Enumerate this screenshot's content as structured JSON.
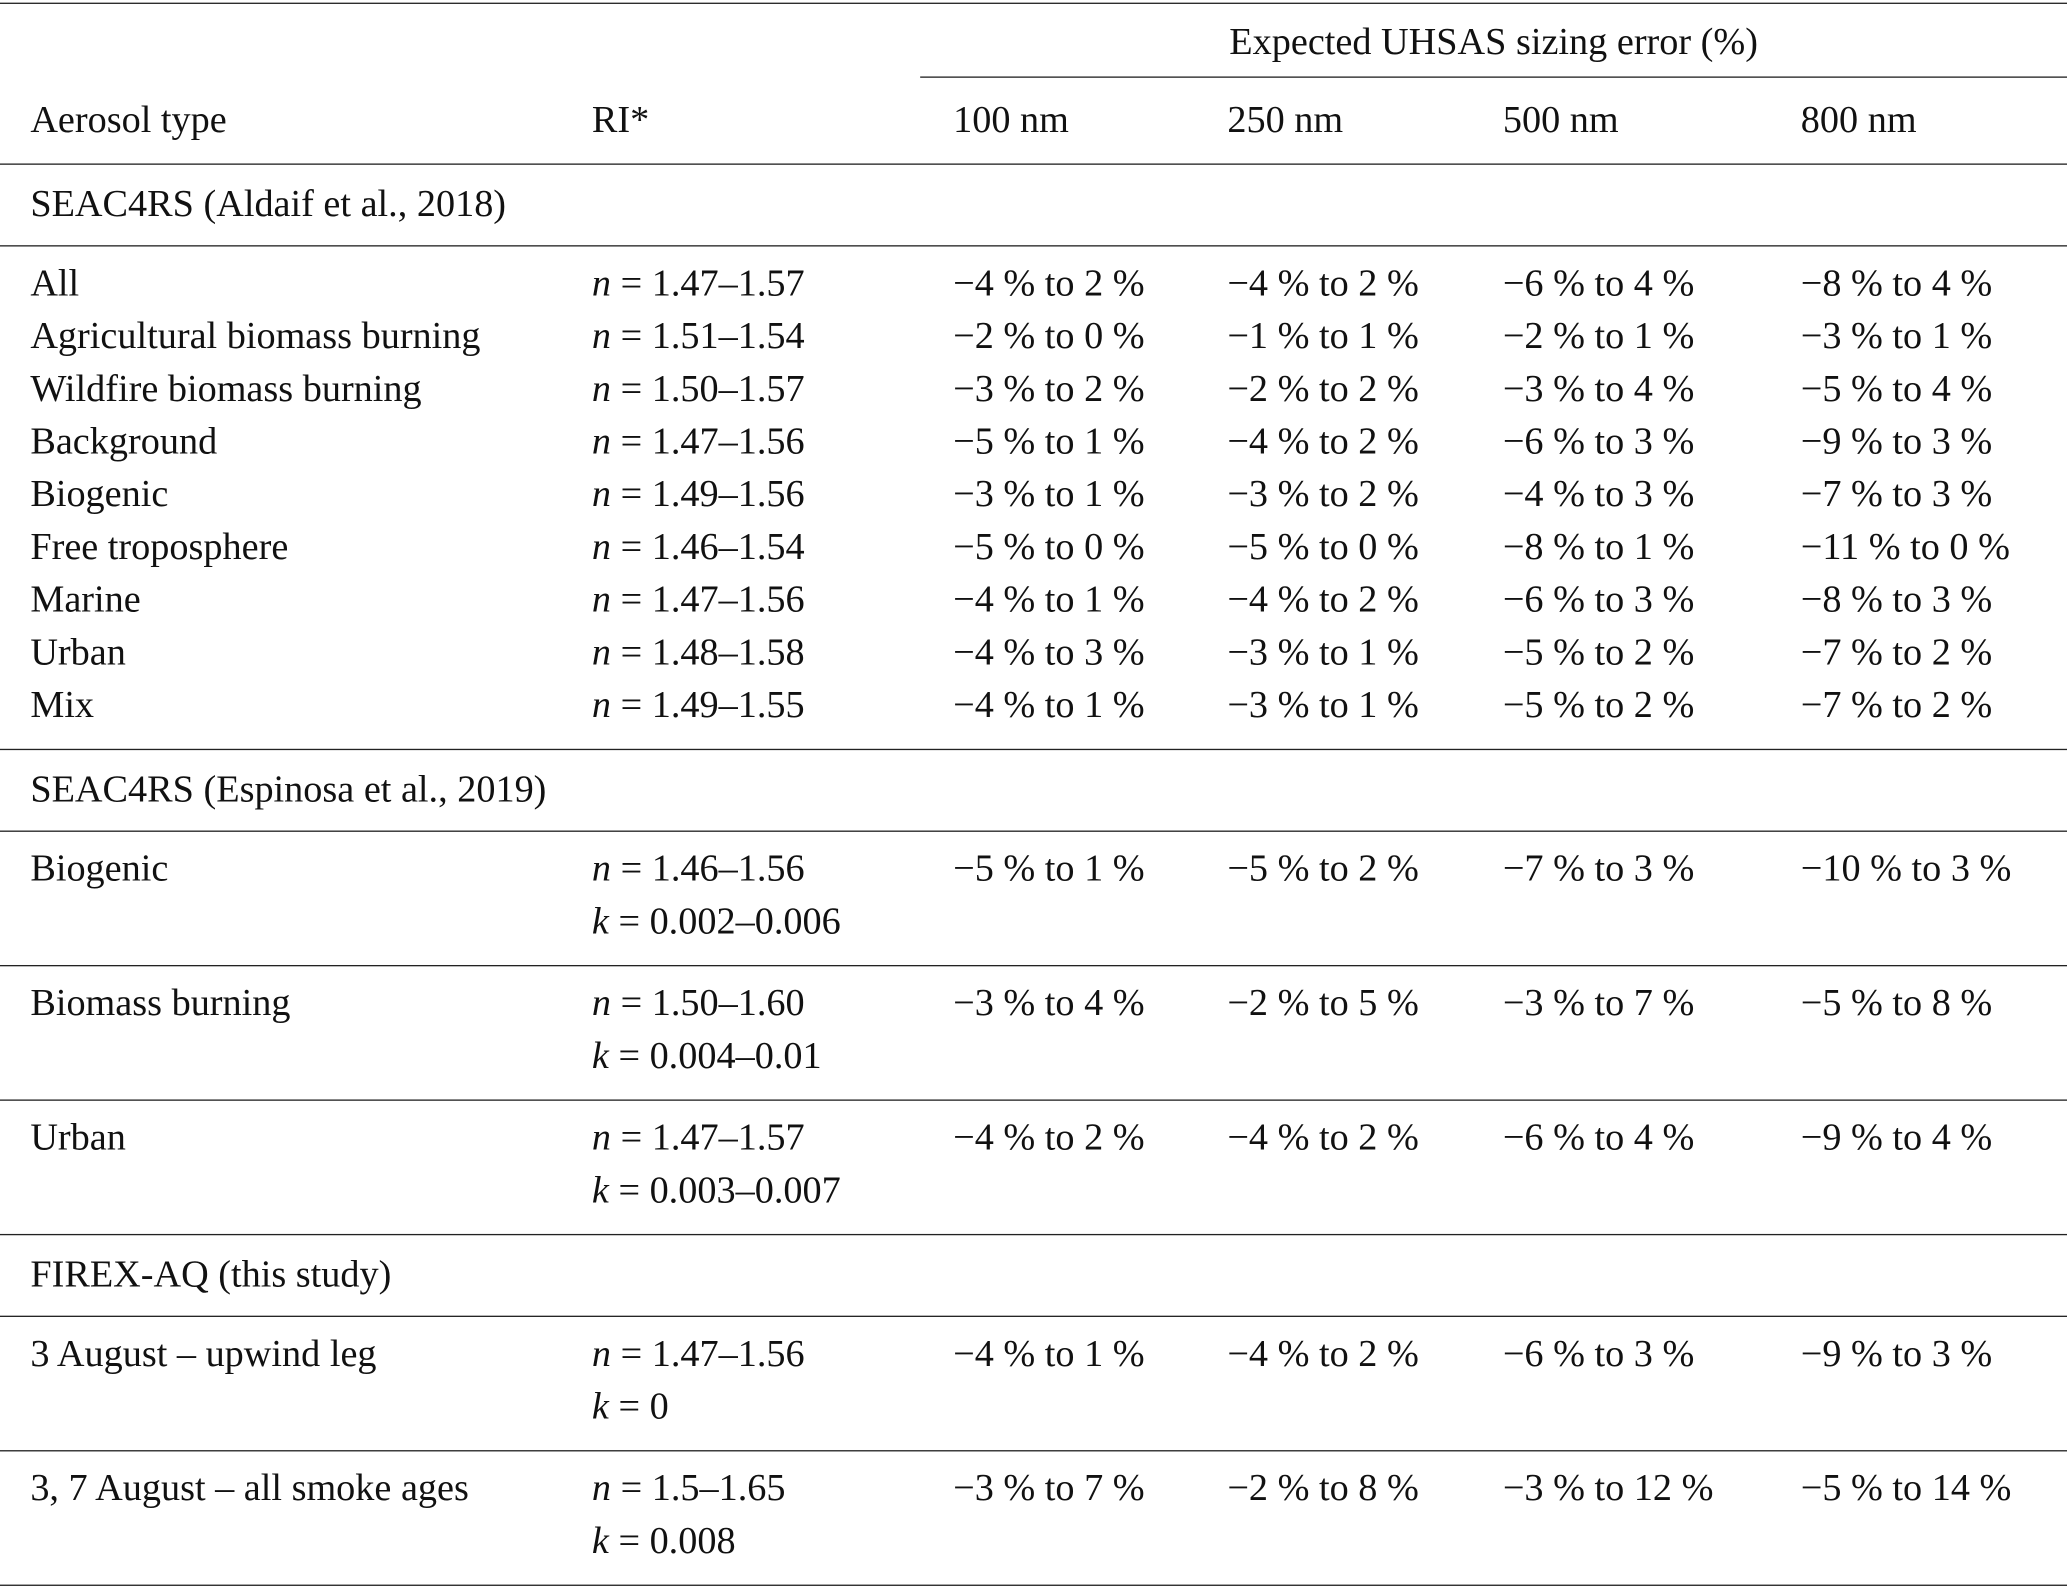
{
  "table": {
    "group_header": "Expected UHSAS sizing error (%)",
    "columns": [
      "Aerosol type",
      "RI*",
      "100 nm",
      "250 nm",
      "500 nm",
      "800 nm"
    ],
    "sections": [
      {
        "title": "SEAC4RS (Aldaif et al., 2018)",
        "rows": [
          {
            "type": "All",
            "ri": [
              "n = 1.47–1.57"
            ],
            "errors": [
              "−4 % to 2 %",
              "−4 % to 2 %",
              "−6 % to 4 %",
              "−8 % to 4 %"
            ]
          },
          {
            "type": "Agricultural biomass burning",
            "ri": [
              "n = 1.51–1.54"
            ],
            "errors": [
              "−2 % to 0 %",
              "−1 % to 1 %",
              "−2 % to 1 %",
              "−3 % to 1 %"
            ]
          },
          {
            "type": "Wildfire biomass burning",
            "ri": [
              "n = 1.50–1.57"
            ],
            "errors": [
              "−3 % to 2 %",
              "−2 % to 2 %",
              "−3 % to 4 %",
              "−5 % to 4 %"
            ]
          },
          {
            "type": "Background",
            "ri": [
              "n = 1.47–1.56"
            ],
            "errors": [
              "−5 % to 1 %",
              "−4 % to 2 %",
              "−6 % to 3 %",
              "−9 % to 3 %"
            ]
          },
          {
            "type": "Biogenic",
            "ri": [
              "n = 1.49–1.56"
            ],
            "errors": [
              "−3 % to 1 %",
              "−3 % to 2 %",
              "−4 % to 3 %",
              "−7 % to 3 %"
            ]
          },
          {
            "type": "Free troposphere",
            "ri": [
              "n = 1.46–1.54"
            ],
            "errors": [
              "−5 % to 0 %",
              "−5 % to 0 %",
              "−8 % to 1 %",
              "−11 % to 0 %"
            ]
          },
          {
            "type": "Marine",
            "ri": [
              "n = 1.47–1.56"
            ],
            "errors": [
              "−4 % to 1 %",
              "−4 % to 2 %",
              "−6 % to 3 %",
              "−8 % to 3 %"
            ]
          },
          {
            "type": "Urban",
            "ri": [
              "n = 1.48–1.58"
            ],
            "errors": [
              "−4 % to 3 %",
              "−3 % to 1 %",
              "−5 % to 2 %",
              "−7 % to 2 %"
            ]
          },
          {
            "type": "Mix",
            "ri": [
              "n = 1.49–1.55"
            ],
            "errors": [
              "−4 % to 1 %",
              "−3 % to 1 %",
              "−5 % to 2 %",
              "−7 % to 2 %"
            ]
          }
        ]
      },
      {
        "title": "SEAC4RS (Espinosa et al., 2019)",
        "rows": [
          {
            "type": "Biogenic",
            "ri": [
              "n = 1.46–1.56",
              "k = 0.002–0.006"
            ],
            "errors": [
              "−5 % to 1 %",
              "−5 % to 2 %",
              "−7 % to 3 %",
              "−10 % to 3 %"
            ]
          },
          {
            "type": "Biomass burning",
            "ri": [
              "n = 1.50–1.60",
              "k = 0.004–0.01"
            ],
            "errors": [
              "−3 % to 4 %",
              "−2 % to 5 %",
              "−3 % to 7 %",
              "−5 % to 8 %"
            ]
          },
          {
            "type": "Urban",
            "ri": [
              "n = 1.47–1.57",
              "k = 0.003–0.007"
            ],
            "errors": [
              "−4 % to 2 %",
              "−4 % to 2 %",
              "−6 % to 4 %",
              "−9 % to 4 %"
            ]
          }
        ]
      },
      {
        "title": "FIREX-AQ (this study)",
        "rows": [
          {
            "type": "3 August – upwind leg",
            "ri": [
              "n = 1.47–1.56",
              "k = 0"
            ],
            "errors": [
              "−4 % to 1 %",
              "−4 % to 2 %",
              "−6 % to 3 %",
              "−9 % to 3 %"
            ]
          },
          {
            "type": "3, 7 August – all smoke ages",
            "ri": [
              "n = 1.5–1.65",
              "k = 0.008"
            ],
            "errors": [
              "−3 % to 7 %",
              "−2 % to 8 %",
              "−3 % to 12 %",
              "−5 % to 14 %"
            ]
          }
        ]
      }
    ]
  }
}
